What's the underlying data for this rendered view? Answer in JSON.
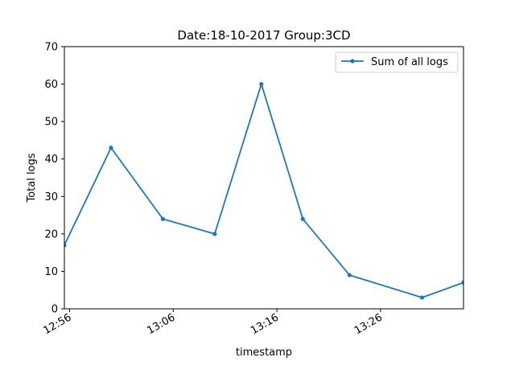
{
  "chart_data": {
    "type": "line",
    "title": "Date:18-10-2017  Group:3CD",
    "xlabel": "timestamp",
    "ylabel": "Total logs",
    "x_ticks": [
      "12:56",
      "13:06",
      "13:16",
      "13:26"
    ],
    "y_ticks": [
      "0",
      "10",
      "20",
      "30",
      "40",
      "50",
      "60",
      "70"
    ],
    "ylim": [
      0,
      70
    ],
    "xlim": [
      "12:55.5",
      "13:34"
    ],
    "grid": false,
    "legend_position": "top-right",
    "series": [
      {
        "name": "Sum of all logs",
        "color": "#1f77b4",
        "marker": "dot",
        "x": [
          "12:55.5",
          "13:00",
          "13:05",
          "13:10",
          "13:14.5",
          "13:18.5",
          "13:23",
          "13:30",
          "13:34"
        ],
        "y": [
          17,
          43,
          24,
          20,
          60,
          24,
          9,
          3,
          7
        ]
      }
    ]
  }
}
